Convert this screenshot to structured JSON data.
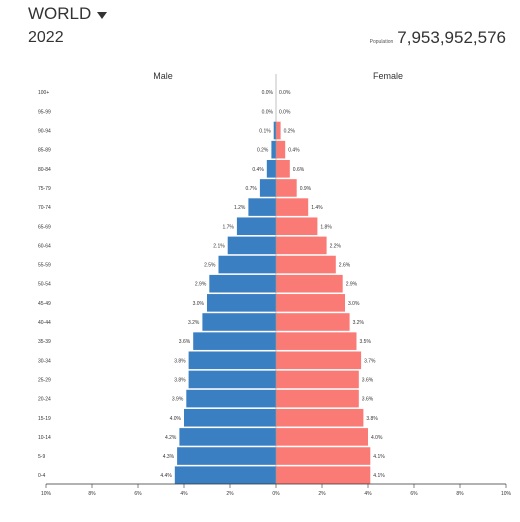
{
  "header": {
    "region": "WORLD",
    "year": "2022",
    "population_label": "Population",
    "population_value": "7,953,952,576"
  },
  "colors": {
    "male": "#3A7FC1",
    "female": "#FA7A76"
  },
  "chart_data": {
    "type": "bar",
    "orientation": "horizontal",
    "title": "",
    "series": [
      {
        "name": "Male",
        "values": [
          4.4,
          4.3,
          4.2,
          4.0,
          3.9,
          3.8,
          3.8,
          3.6,
          3.2,
          3.0,
          2.9,
          2.5,
          2.1,
          1.7,
          1.2,
          0.7,
          0.4,
          0.2,
          0.1,
          0.0,
          0.0
        ]
      },
      {
        "name": "Female",
        "values": [
          4.1,
          4.1,
          4.0,
          3.8,
          3.6,
          3.6,
          3.7,
          3.5,
          3.2,
          3.0,
          2.9,
          2.6,
          2.2,
          1.8,
          1.4,
          0.9,
          0.6,
          0.4,
          0.2,
          0.0,
          0.0
        ]
      }
    ],
    "categories": [
      "0-4",
      "5-9",
      "10-14",
      "15-19",
      "20-24",
      "25-29",
      "30-34",
      "35-39",
      "40-44",
      "45-49",
      "50-54",
      "55-59",
      "60-64",
      "65-69",
      "70-74",
      "75-79",
      "80-84",
      "85-89",
      "90-94",
      "95-99",
      "100+"
    ],
    "x_ticks": [
      "10%",
      "8%",
      "6%",
      "4%",
      "2%",
      "0%",
      "2%",
      "4%",
      "6%",
      "8%",
      "10%"
    ],
    "xlim": [
      -10,
      10
    ],
    "value_suffix": "%",
    "legend": "top, above each side",
    "grid": false
  }
}
